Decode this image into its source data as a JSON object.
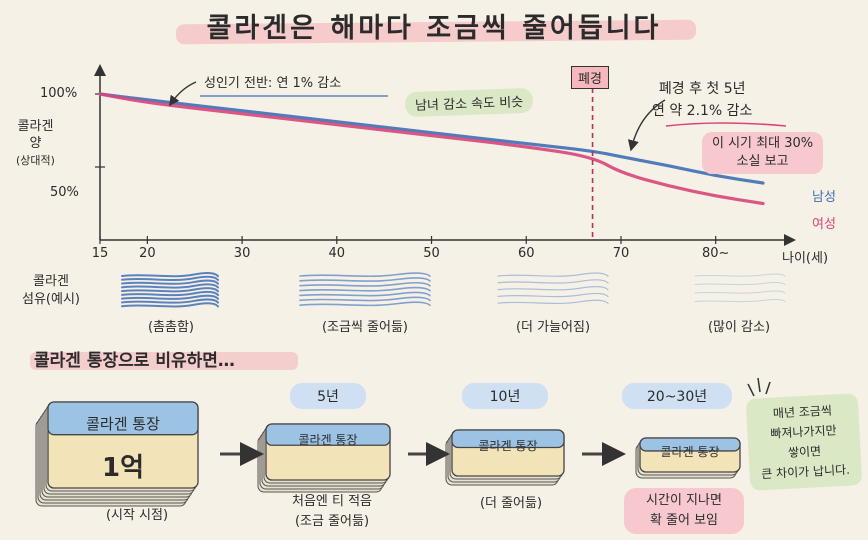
{
  "title": "콜라겐은 해마다 조금씩 줄어듭니다",
  "chart_data": {
    "type": "line",
    "ylabel": [
      "콜라겐",
      "양",
      "(상대적)"
    ],
    "xlabel": "나이(세)",
    "x_ticks": [
      "15",
      "20",
      "30",
      "40",
      "50",
      "60",
      "70",
      "80~"
    ],
    "y_ticks": [
      "100%",
      "50%"
    ],
    "xlim": [
      15,
      87
    ],
    "ylim": [
      0,
      115
    ],
    "series": [
      {
        "name": "남성",
        "color": "#3f6fb5",
        "x": [
          15,
          20,
          30,
          40,
          50,
          60,
          67,
          70,
          75,
          80,
          85
        ],
        "y": [
          100,
          96,
          88.5,
          81,
          73.5,
          66,
          61,
          57,
          51,
          44,
          39
        ]
      },
      {
        "name": "여성",
        "color": "#d9457a",
        "x": [
          15,
          20,
          30,
          40,
          50,
          60,
          67,
          70,
          75,
          80,
          85
        ],
        "y": [
          100,
          94,
          86.5,
          79,
          71.5,
          64,
          57,
          46,
          37,
          30,
          25
        ]
      }
    ],
    "menopause_x": 67,
    "menopause_label": "폐경",
    "annotations": [
      "성인기 전반: 연 1% 감소",
      "남녀 감소 속도 비슷",
      "폐경 후 첫 5년",
      "연 약 2.1% 감소",
      "이 시기 최대 30%",
      "소실 보고"
    ]
  },
  "fibers": {
    "row_label": [
      "콜라겐",
      "섬유(예시)"
    ],
    "items": [
      "(촘촘함)",
      "(조금씩 줄어듦)",
      "(더 가늘어짐)",
      "(많이 감소)"
    ]
  },
  "analogy": {
    "heading": "콜라겐 통장으로 비유하면…",
    "card_label": "콜라겐 통장",
    "start_amount": "1억",
    "start_caption": "(시작 시점)",
    "stages": [
      {
        "label": "5년",
        "caption": [
          "처음엔 티 적음",
          "(조금 줄어듦)"
        ]
      },
      {
        "label": "10년",
        "caption": [
          "(더 줄어듦)"
        ]
      },
      {
        "label": "20~30년",
        "caption": [
          "시간이 지나면",
          "확 줄어 보임"
        ]
      }
    ],
    "note": [
      "매년 조금씩",
      "빠져나가지만",
      "쌓이면",
      "큰 차이가 납니다."
    ]
  },
  "colors": {
    "blue": "#3f6fb5",
    "pink": "#d9457a",
    "pill_blue": "#cfe0f2",
    "pill_pink": "#f7c9cf",
    "pill_green": "#dbe8c6",
    "card_top": "#9cc3e4",
    "card_bottom": "#f3e3b8"
  }
}
